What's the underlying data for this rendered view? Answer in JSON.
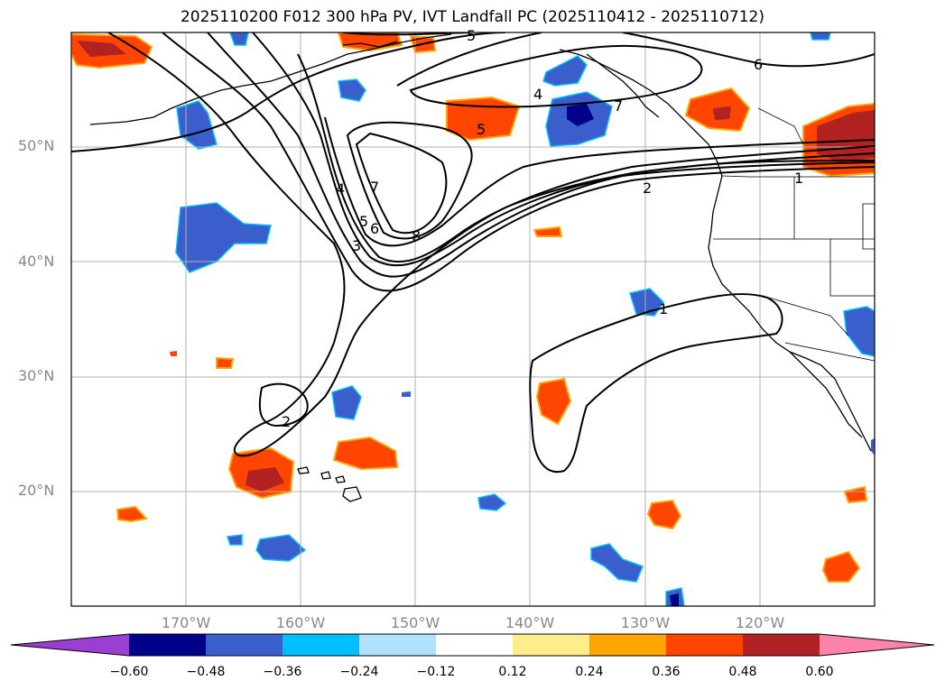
{
  "title": "2025110200 F012 300 hPa PV, IVT Landfall PC (2025110412 - 2025110712)",
  "lat_labels": [
    "50°N",
    "40°N",
    "30°N",
    "20°N"
  ],
  "lon_labels": [
    "170°W",
    "160°W",
    "150°W",
    "140°W",
    "130°W",
    "120°W"
  ],
  "contour_labels": [
    "5",
    "6",
    "4",
    "5",
    "7",
    "4",
    "7",
    "5",
    "6",
    "3",
    "8",
    "2",
    "1",
    "1",
    "2"
  ],
  "colorbar": {
    "ticks": [
      "−0.60",
      "−0.48",
      "−0.36",
      "−0.24",
      "−0.12",
      "0.12",
      "0.24",
      "0.36",
      "0.48",
      "0.60"
    ],
    "colors": [
      "#9b3fd3",
      "#00008b",
      "#3a5fcd",
      "#00bfff",
      "#b0e2ff",
      "#ffffff",
      "#ffec8b",
      "#ffa500",
      "#ff4500",
      "#b22222",
      "#ff82ab"
    ]
  },
  "colors": {
    "neg_strong": "#00008b",
    "neg_mid": "#3a5fcd",
    "neg_light": "#00bfff",
    "pos_light": "#ffa500",
    "pos_mid": "#ff4500",
    "pos_strong": "#b22222",
    "grid": "#b0b0b0"
  }
}
